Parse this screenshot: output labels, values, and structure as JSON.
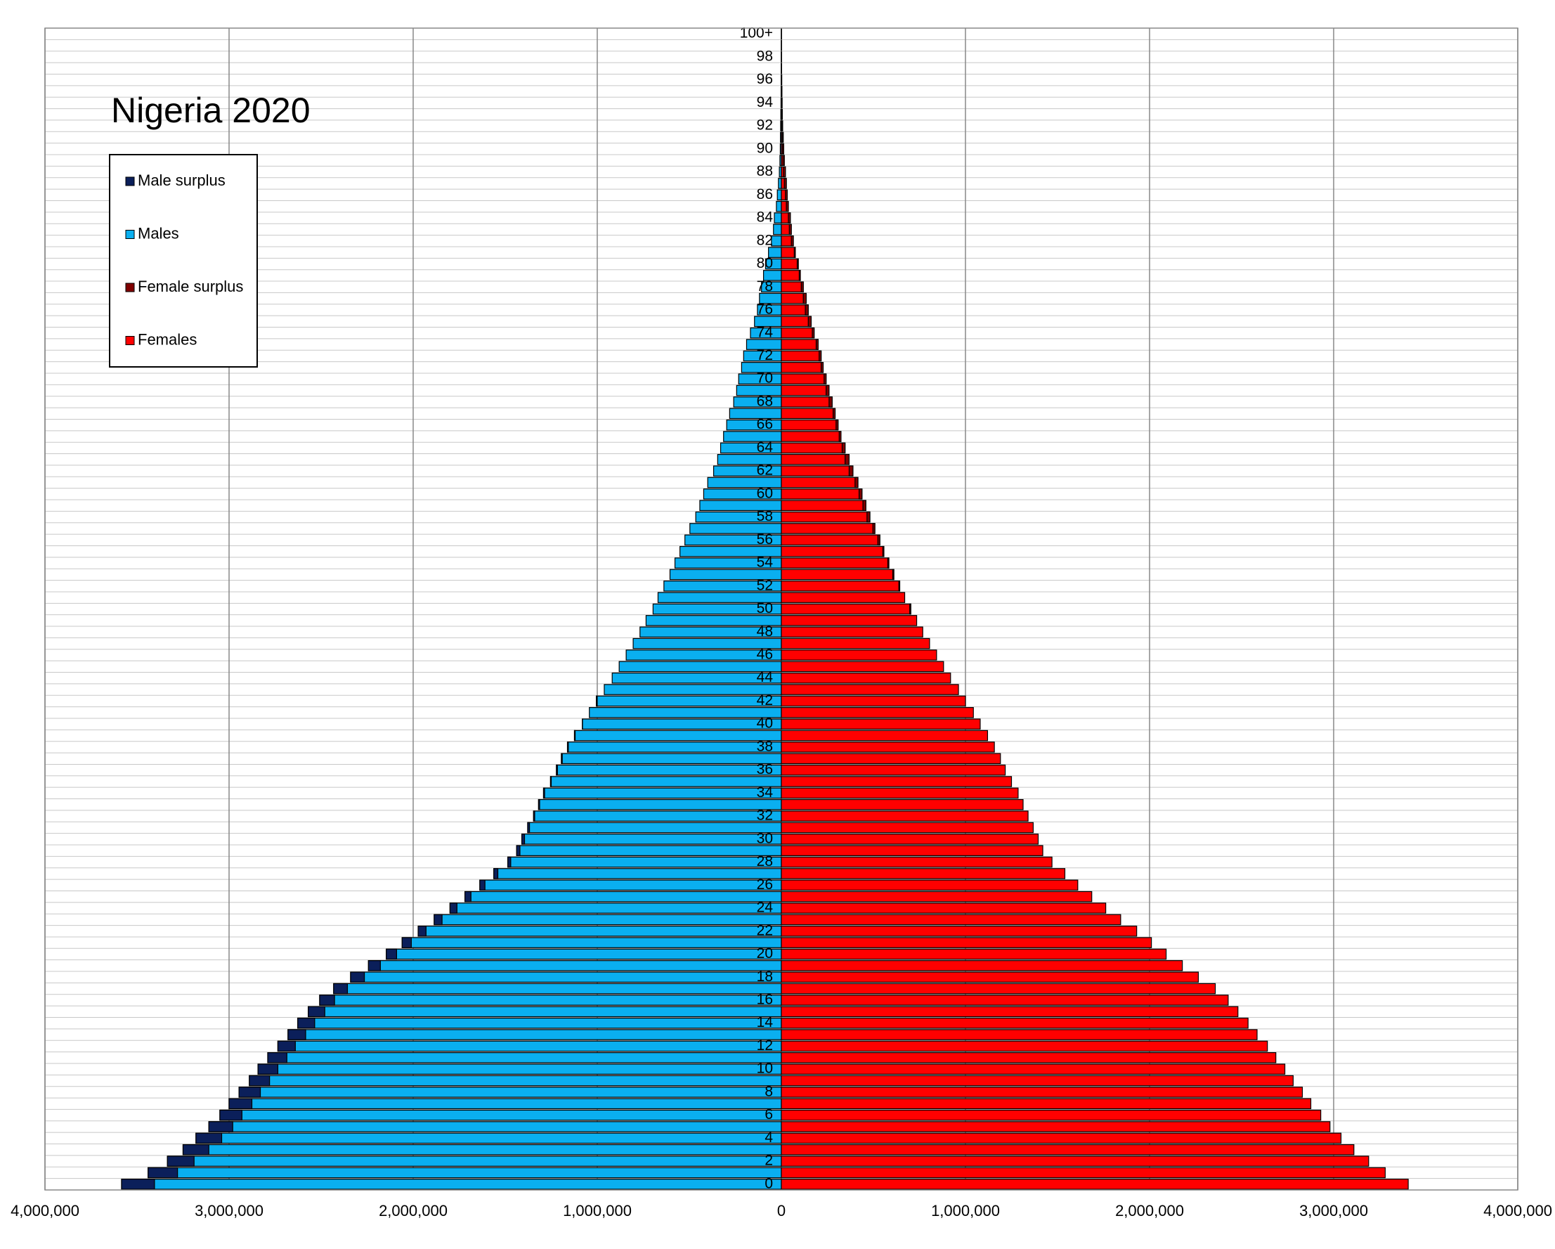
{
  "chart_data": {
    "type": "pyramid",
    "title": "Nigeria 2020",
    "categories": [
      "0",
      null,
      "2",
      null,
      "4",
      null,
      "6",
      null,
      "8",
      null,
      "10",
      null,
      "12",
      null,
      "14",
      null,
      "16",
      null,
      "18",
      null,
      "20",
      null,
      "22",
      null,
      "24",
      null,
      "26",
      null,
      "28",
      null,
      "30",
      null,
      "32",
      null,
      "34",
      null,
      "36",
      null,
      "38",
      null,
      "40",
      null,
      "42",
      null,
      "44",
      null,
      "46",
      null,
      "48",
      null,
      "50",
      null,
      "52",
      null,
      "54",
      null,
      "56",
      null,
      "58",
      null,
      "60",
      null,
      "62",
      null,
      "64",
      null,
      "66",
      null,
      "68",
      null,
      "70",
      null,
      "72",
      null,
      "74",
      null,
      "76",
      null,
      "78",
      null,
      "80",
      null,
      "82",
      null,
      "84",
      null,
      "86",
      null,
      "88",
      null,
      "90",
      null,
      "92",
      null,
      "94",
      null,
      "96",
      null,
      "98",
      null,
      "100+"
    ],
    "series": [
      {
        "name": "Males",
        "side": "left",
        "color": "#0aaff0",
        "surplus_name": "Male surplus",
        "surplus_color": "#0b1f5a",
        "values": [
          3584000,
          3440000,
          3335000,
          3250000,
          3180000,
          3110000,
          3050000,
          3000000,
          2946000,
          2890000,
          2843000,
          2790000,
          2735000,
          2680000,
          2627000,
          2570000,
          2508000,
          2432000,
          2340000,
          2243000,
          2146000,
          2060000,
          1973000,
          1886000,
          1800000,
          1719000,
          1638000,
          1562000,
          1486000,
          1438000,
          1410000,
          1378000,
          1346000,
          1319000,
          1292000,
          1254000,
          1222000,
          1195000,
          1162000,
          1124000,
          1081000,
          1043000,
          1005000,
          962000,
          919000,
          881000,
          843000,
          805000,
          768000,
          735000,
          697000,
          670000,
          638000,
          605000,
          578000,
          551000,
          524000,
          497000,
          465000,
          443000,
          422000,
          400000,
          368000,
          346000,
          330000,
          314000,
          297000,
          281000,
          259000,
          243000,
          232000,
          216000,
          205000,
          189000,
          168000,
          146000,
          130000,
          119000,
          108000,
          97000,
          86000,
          70000,
          54000,
          43000,
          38000,
          27000,
          22000,
          16000,
          11000,
          8000,
          6000,
          5000,
          4000,
          3000,
          2000,
          1500,
          1000,
          700,
          500,
          300,
          400
        ]
      },
      {
        "name": "Females",
        "side": "right",
        "color": "#ff0000",
        "surplus_name": "Female surplus",
        "surplus_color": "#800000",
        "values": [
          3405000,
          3280000,
          3190000,
          3110000,
          3040000,
          2980000,
          2930000,
          2876000,
          2830000,
          2780000,
          2735000,
          2686000,
          2640000,
          2584000,
          2535000,
          2480000,
          2427000,
          2357000,
          2265000,
          2178000,
          2090000,
          2010000,
          1930000,
          1843000,
          1762000,
          1686000,
          1610000,
          1540000,
          1470000,
          1420000,
          1395000,
          1368000,
          1340000,
          1313000,
          1286000,
          1250000,
          1216000,
          1190000,
          1157000,
          1120000,
          1080000,
          1043000,
          1000000,
          962000,
          919000,
          881000,
          843000,
          805000,
          768000,
          735000,
          703000,
          670000,
          643000,
          611000,
          584000,
          557000,
          535000,
          508000,
          481000,
          459000,
          438000,
          416000,
          389000,
          368000,
          346000,
          324000,
          308000,
          292000,
          276000,
          259000,
          243000,
          227000,
          216000,
          200000,
          178000,
          162000,
          146000,
          135000,
          119000,
          103000,
          92000,
          76000,
          65000,
          54000,
          49000,
          38000,
          32000,
          27000,
          22000,
          16000,
          13000,
          10000,
          7000,
          5000,
          4000,
          3000,
          2000,
          1500,
          1000,
          700,
          800
        ]
      }
    ],
    "xlim": [
      -4000000,
      4000000
    ],
    "xticks": [
      {
        "value": -4000000,
        "label": "4,000,000"
      },
      {
        "value": -3000000,
        "label": "3,000,000"
      },
      {
        "value": -2000000,
        "label": "2,000,000"
      },
      {
        "value": -1000000,
        "label": "1,000,000"
      },
      0,
      {
        "value": 1000000,
        "label": "1,000,000"
      },
      {
        "value": 2000000,
        "label": "2,000,000"
      },
      {
        "value": 3000000,
        "label": "3,000,000"
      },
      {
        "value": 4000000,
        "label": "4,000,000"
      }
    ],
    "grid": true
  }
}
